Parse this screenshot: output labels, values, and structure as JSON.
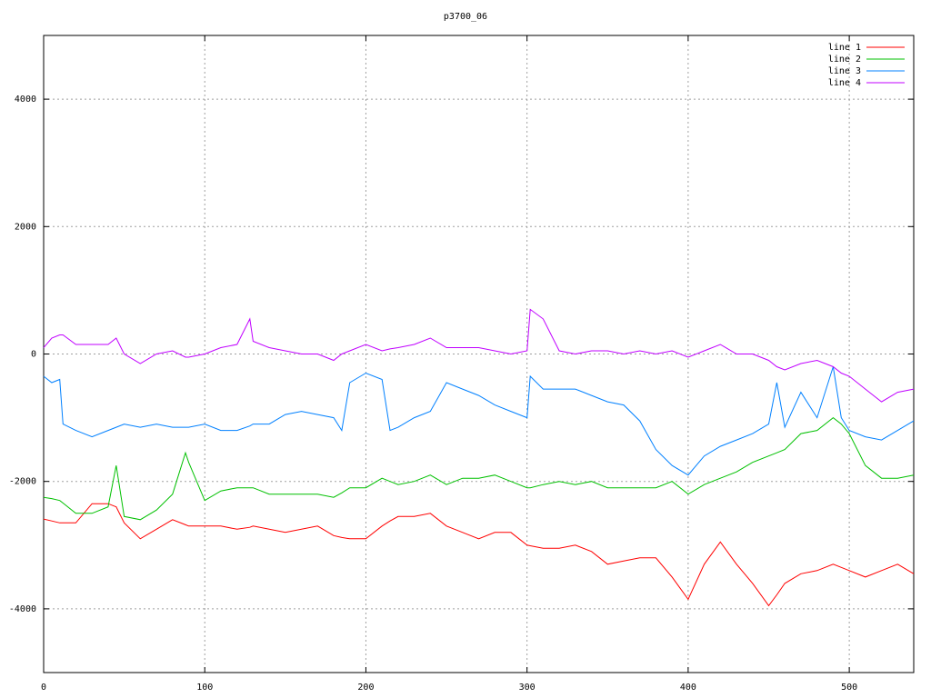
{
  "chart_data": {
    "type": "line",
    "title": "p3700_06",
    "x": [
      0,
      5,
      10,
      12,
      20,
      30,
      40,
      45,
      50,
      60,
      70,
      80,
      88,
      90,
      100,
      110,
      120,
      128,
      130,
      140,
      150,
      160,
      170,
      180,
      185,
      190,
      200,
      210,
      215,
      220,
      230,
      240,
      250,
      260,
      270,
      280,
      290,
      300,
      302,
      310,
      320,
      330,
      340,
      350,
      360,
      370,
      380,
      390,
      400,
      410,
      420,
      430,
      440,
      450,
      455,
      460,
      470,
      480,
      490,
      495,
      500,
      510,
      520,
      530,
      540
    ],
    "series": [
      {
        "name": "line 1",
        "color": "#ff0000",
        "values": [
          -2590,
          -2620,
          -2650,
          -2650,
          -2650,
          -2350,
          -2350,
          -2400,
          -2650,
          -2900,
          -2750,
          -2600,
          -2680,
          -2700,
          -2700,
          -2700,
          -2750,
          -2720,
          -2700,
          -2750,
          -2800,
          -2750,
          -2700,
          -2850,
          -2880,
          -2900,
          -2900,
          -2700,
          -2620,
          -2550,
          -2550,
          -2500,
          -2700,
          -2800,
          -2900,
          -2800,
          -2800,
          -3000,
          -3010,
          -3050,
          -3050,
          -3000,
          -3100,
          -3300,
          -3250,
          -3200,
          -3200,
          -3500,
          -3850,
          -3300,
          -2950,
          -3300,
          -3600,
          -3950,
          -3780,
          -3600,
          -3450,
          -3400,
          -3300,
          -3350,
          -3400,
          -3500,
          -3400,
          -3300,
          -3450
        ]
      },
      {
        "name": "line 2",
        "color": "#00c000",
        "values": [
          -2250,
          -2270,
          -2300,
          -2340,
          -2500,
          -2500,
          -2400,
          -1750,
          -2550,
          -2600,
          -2450,
          -2200,
          -1550,
          -1700,
          -2300,
          -2150,
          -2100,
          -2100,
          -2100,
          -2200,
          -2200,
          -2200,
          -2200,
          -2250,
          -2180,
          -2100,
          -2100,
          -1950,
          -2000,
          -2050,
          -2000,
          -1900,
          -2050,
          -1950,
          -1950,
          -1900,
          -2000,
          -2100,
          -2100,
          -2050,
          -2000,
          -2050,
          -2000,
          -2100,
          -2100,
          -2100,
          -2100,
          -2000,
          -2200,
          -2050,
          -1950,
          -1850,
          -1700,
          -1600,
          -1550,
          -1500,
          -1250,
          -1200,
          -1000,
          -1100,
          -1250,
          -1750,
          -1950,
          -1950,
          -1900
        ]
      },
      {
        "name": "line 3",
        "color": "#0080ff",
        "values": [
          -350,
          -450,
          -400,
          -1100,
          -1200,
          -1300,
          -1200,
          -1150,
          -1100,
          -1150,
          -1100,
          -1150,
          -1150,
          -1150,
          -1100,
          -1200,
          -1200,
          -1130,
          -1100,
          -1100,
          -950,
          -900,
          -950,
          -1000,
          -1200,
          -450,
          -300,
          -400,
          -1200,
          -1150,
          -1000,
          -900,
          -450,
          -550,
          -650,
          -800,
          -900,
          -1000,
          -350,
          -550,
          -550,
          -550,
          -650,
          -750,
          -800,
          -1050,
          -1500,
          -1750,
          -1900,
          -1600,
          -1450,
          -1350,
          -1250,
          -1100,
          -450,
          -1150,
          -600,
          -1000,
          -200,
          -1000,
          -1200,
          -1300,
          -1350,
          -1200,
          -1050
        ]
      },
      {
        "name": "line 4",
        "color": "#c000ff",
        "values": [
          100,
          250,
          300,
          300,
          150,
          150,
          150,
          250,
          0,
          -150,
          0,
          50,
          -50,
          -50,
          0,
          100,
          150,
          550,
          200,
          100,
          50,
          0,
          0,
          -100,
          0,
          50,
          150,
          50,
          80,
          100,
          150,
          250,
          100,
          100,
          100,
          50,
          0,
          50,
          700,
          550,
          50,
          0,
          50,
          50,
          0,
          50,
          0,
          50,
          -50,
          50,
          150,
          0,
          0,
          -100,
          -200,
          -250,
          -150,
          -100,
          -200,
          -300,
          -350,
          -550,
          -750,
          -600,
          -550
        ]
      }
    ],
    "xlim": [
      0,
      540
    ],
    "ylim": [
      -5000,
      5000
    ],
    "xticks": [
      0,
      100,
      200,
      300,
      400,
      500
    ],
    "yticks": [
      -4000,
      -2000,
      0,
      2000,
      4000
    ],
    "grid": true,
    "legend": "top-right"
  }
}
